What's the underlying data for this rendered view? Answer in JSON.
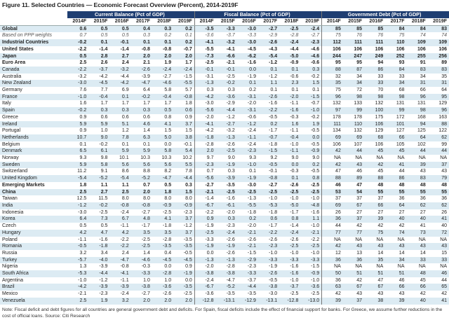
{
  "title": "Figure 11. Selected Countries — Economic Forecast Overview (Percent), 2014-2019F",
  "groups": [
    "Current Balance (Pct of GDP)",
    "Fiscal Balance (Pct of GDP)",
    "Government Debt (Pct of GDP)"
  ],
  "years": [
    "2014F",
    "2015F",
    "2016F",
    "2017F",
    "2018F",
    "2019F"
  ],
  "colors": {
    "header": "#1f3e72",
    "stripe": "#dcebf3"
  },
  "rows": [
    {
      "label": "Global",
      "style": "b",
      "v": [
        "0.6",
        "0.5",
        "0.5",
        "0.4",
        "0.3",
        "0.2",
        "-3.5",
        "-3.3",
        "-3.0",
        "-2.7",
        "-2.5",
        "-2.4",
        "85",
        "85",
        "85",
        "84",
        "84",
        "83"
      ]
    },
    {
      "label": "Based on PPP weights",
      "style": "i",
      "v": [
        "0.7",
        "0.5",
        "0.5",
        "0.3",
        "0.2",
        "0.1",
        "-3.6",
        "-3.7",
        "-3.3",
        "-2.9",
        "-2.8",
        "-2.7",
        "75",
        "76",
        "76",
        "75",
        "74",
        "74"
      ]
    },
    {
      "label": "Industrial Countries",
      "style": "b",
      "v": [
        "-0.2",
        "0.1",
        "-0.1",
        "0.1",
        "0.1",
        "0.2",
        "-4.1",
        "-3.2",
        "-3.0",
        "-2.6",
        "-2.4",
        "-2.3",
        "112",
        "111",
        "111",
        "110",
        "109",
        "109"
      ]
    },
    {
      "label": "United States",
      "style": "b",
      "v": [
        "-2.2",
        "-1.4",
        "-1.4",
        "-0.8",
        "-0.8",
        "-0.7",
        "-5.5",
        "-4.1",
        "-4.5",
        "-4.3",
        "-4.4",
        "-4.6",
        "106",
        "106",
        "106",
        "106",
        "106",
        "106"
      ]
    },
    {
      "label": "Japan",
      "style": "b",
      "v": [
        "0.5",
        "2.8",
        "2.7",
        "2.0",
        "2.0",
        "2.0",
        "-7.3",
        "-6.6",
        "-6.2",
        "-5.4",
        "-5.0",
        "-4.6",
        "244",
        "247",
        "249",
        "252",
        "255",
        "256"
      ]
    },
    {
      "label": "Euro Area",
      "style": "b",
      "v": [
        "2.5",
        "2.6",
        "2.4",
        "2.1",
        "1.9",
        "1.7",
        "-2.5",
        "-2.1",
        "-1.6",
        "-1.2",
        "-0.9",
        "-0.6",
        "95",
        "95",
        "94",
        "93",
        "91",
        "89"
      ]
    },
    {
      "label": "Canada",
      "style": "",
      "v": [
        "-2.2",
        "-3.7",
        "-3.2",
        "-2.6",
        "-2.4",
        "-2.4",
        "-0.1",
        "-0.1",
        "0.0",
        "0.1",
        "0.1",
        "0.3",
        "88",
        "87",
        "86",
        "84",
        "83",
        "83"
      ]
    },
    {
      "label": "Australia",
      "style": "",
      "v": [
        "-3.2",
        "-4.2",
        "-4.4",
        "-3.9",
        "-2.7",
        "-1.5",
        "-3.1",
        "-2.5",
        "-1.9",
        "-1.2",
        "-0.6",
        "-0.2",
        "32",
        "34",
        "33",
        "33",
        "34",
        "35"
      ]
    },
    {
      "label": "New Zealand",
      "style": "",
      "v": [
        "-3.0",
        "-4.5",
        "-4.2",
        "-4.7",
        "-4.6",
        "-5.5",
        "-1.3",
        "-0.2",
        "0.1",
        "1.1",
        "2.3",
        "1.5",
        "35",
        "34",
        "33",
        "34",
        "31",
        "31"
      ]
    },
    {
      "label": "Germany",
      "style": "",
      "v": [
        "7.6",
        "7.7",
        "6.9",
        "6.4",
        "5.8",
        "5.7",
        "0.3",
        "0.3",
        "0.2",
        "0.1",
        "0.1",
        "0.1",
        "75",
        "72",
        "70",
        "68",
        "66",
        "64"
      ]
    },
    {
      "label": "France",
      "style": "",
      "v": [
        "-1.0",
        "-0.4",
        "0.1",
        "-0.2",
        "-0.4",
        "-0.8",
        "-4.2",
        "-3.6",
        "-3.1",
        "-2.6",
        "-2.0",
        "-1.5",
        "96",
        "98",
        "98",
        "98",
        "96",
        "95"
      ]
    },
    {
      "label": "Italy",
      "style": "",
      "v": [
        "1.6",
        "1.7",
        "1.7",
        "1.7",
        "1.7",
        "1.8",
        "-3.0",
        "-2.9",
        "-2.0",
        "-1.6",
        "-1.1",
        "-0.7",
        "132",
        "133",
        "132",
        "131",
        "131",
        "129"
      ]
    },
    {
      "label": "Spain",
      "style": "",
      "v": [
        "-0.2",
        "0.3",
        "0.3",
        "0.3",
        "0.5",
        "0.6",
        "-5.6",
        "-4.4",
        "-3.1",
        "-2.2",
        "-1.6",
        "-1.0",
        "97",
        "99",
        "100",
        "99",
        "98",
        "96"
      ]
    },
    {
      "label": "Greece",
      "style": "",
      "v": [
        "0.9",
        "0.6",
        "0.6",
        "0.6",
        "0.8",
        "0.9",
        "-2.0",
        "-1.2",
        "-0.6",
        "-0.5",
        "-0.3",
        "-0.2",
        "178",
        "178",
        "175",
        "172",
        "168",
        "163"
      ]
    },
    {
      "label": "Ireland",
      "style": "",
      "v": [
        "5.9",
        "5.9",
        "5.1",
        "4.6",
        "4.1",
        "3.7",
        "-4.1",
        "-2.7",
        "-1.2",
        "0.2",
        "1.6",
        "1.9",
        "111",
        "110",
        "106",
        "101",
        "94",
        "88"
      ]
    },
    {
      "label": "Portugal",
      "style": "",
      "v": [
        "0.9",
        "1.0",
        "1.2",
        "1.4",
        "1.5",
        "1.5",
        "-4.2",
        "-3.2",
        "-2.4",
        "-1.7",
        "-1.1",
        "-0.5",
        "134",
        "132",
        "129",
        "127",
        "125",
        "122"
      ]
    },
    {
      "label": "Netherlands",
      "style": "",
      "v": [
        "10.7",
        "9.0",
        "7.8",
        "6.3",
        "5.0",
        "3.8",
        "-1.8",
        "-1.3",
        "-1.1",
        "-0.7",
        "-0.4",
        "0.0",
        "69",
        "69",
        "68",
        "66",
        "64",
        "62"
      ]
    },
    {
      "label": "Belgium",
      "style": "",
      "v": [
        "0.1",
        "-0.2",
        "0.1",
        "0.1",
        "0.0",
        "-0.1",
        "-2.8",
        "-2.6",
        "-2.4",
        "-1.8",
        "-1.0",
        "-0.5",
        "106",
        "107",
        "106",
        "105",
        "102",
        "99"
      ]
    },
    {
      "label": "Denmark",
      "style": "",
      "v": [
        "6.5",
        "6.1",
        "5.9",
        "5.9",
        "5.8",
        "5.4",
        "2.0",
        "-2.5",
        "-2.3",
        "-1.5",
        "-1.1",
        "-0.9",
        "42",
        "44",
        "45",
        "45",
        "44",
        "44"
      ]
    },
    {
      "label": "Norway",
      "style": "",
      "v": [
        "9.3",
        "9.8",
        "10.1",
        "10.3",
        "10.3",
        "10.2",
        "9.7",
        "9.0",
        "9.3",
        "9.2",
        "9.0",
        "9.0",
        "NA",
        "NA",
        "NA",
        "NA",
        "NA",
        "NA"
      ]
    },
    {
      "label": "Sweden",
      "style": "",
      "v": [
        "5.9",
        "5.8",
        "5.6",
        "5.6",
        "5.6",
        "5.5",
        "-2.3",
        "-1.9",
        "-1.0",
        "-0.5",
        "0.0",
        "0.2",
        "42",
        "43",
        "42",
        "41",
        "39",
        "37"
      ]
    },
    {
      "label": "Switzerland",
      "style": "",
      "v": [
        "11.2",
        "9.1",
        "8.6",
        "8.8",
        "8.2",
        "7.8",
        "0.7",
        "0.3",
        "0.1",
        "-0.1",
        "-0.3",
        "-0.5",
        "47",
        "46",
        "45",
        "44",
        "43",
        "43"
      ]
    },
    {
      "label": "United Kingdom",
      "style": "",
      "v": [
        "-5.4",
        "-5.2",
        "-5.4",
        "-5.2",
        "-4.7",
        "-4.4",
        "-5.6",
        "-3.9",
        "-1.9",
        "-0.8",
        "0.1",
        "0.8",
        "88",
        "89",
        "88",
        "86",
        "83",
        "79"
      ]
    },
    {
      "label": "Emerging Markets",
      "style": "b",
      "v": [
        "1.8",
        "1.1",
        "1.1",
        "0.7",
        "0.5",
        "0.3",
        "-2.7",
        "-3.5",
        "-3.0",
        "-2.7",
        "-2.6",
        "-2.5",
        "46",
        "47",
        "48",
        "48",
        "48",
        "48"
      ]
    },
    {
      "label": "China",
      "style": "b",
      "v": [
        "2.5",
        "2.7",
        "2.5",
        "2.0",
        "1.8",
        "1.5",
        "-2.1",
        "-2.5",
        "-2.5",
        "-2.5",
        "-2.5",
        "-2.5",
        "53",
        "54",
        "55",
        "55",
        "55",
        "55"
      ]
    },
    {
      "label": "Taiwan",
      "style": "",
      "v": [
        "12.5",
        "11.5",
        "8.0",
        "8.0",
        "8.0",
        "8.0",
        "-1.4",
        "-1.6",
        "-1.3",
        "-1.0",
        "-1.0",
        "-1.0",
        "37",
        "37",
        "37",
        "36",
        "36",
        "36"
      ]
    },
    {
      "label": "India",
      "style": "",
      "v": [
        "-1.2",
        "-0.2",
        "-0.8",
        "-0.8",
        "-0.9",
        "-0.9",
        "-6.7",
        "-6.1",
        "-5.5",
        "-5.3",
        "-5.0",
        "-4.8",
        "69",
        "67",
        "66",
        "64",
        "62",
        "62"
      ]
    },
    {
      "label": "Indonesia",
      "style": "",
      "v": [
        "-3.0",
        "-2.5",
        "-2.4",
        "-2.7",
        "-2.5",
        "-2.3",
        "-2.2",
        "-2.0",
        "-1.8",
        "-1.8",
        "-1.7",
        "-1.6",
        "26",
        "27",
        "27",
        "27",
        "27",
        "26"
      ]
    },
    {
      "label": "Korea",
      "style": "",
      "v": [
        "6.4",
        "7.3",
        "6.7",
        "4.8",
        "4.1",
        "3.7",
        "0.9",
        "0.3",
        "0.2",
        "0.6",
        "0.8",
        "1.1",
        "36",
        "37",
        "39",
        "40",
        "40",
        "41"
      ]
    },
    {
      "label": "Czech",
      "style": "",
      "v": [
        "0.5",
        "0.5",
        "-1.1",
        "-1.7",
        "-1.8",
        "-1.2",
        "-1.9",
        "-2.3",
        "-2.0",
        "-1.7",
        "-1.4",
        "-1.0",
        "44",
        "42",
        "42",
        "42",
        "41",
        "40"
      ]
    },
    {
      "label": "Hungary",
      "style": "",
      "v": [
        "4.2",
        "4.7",
        "4.2",
        "3.5",
        "3.5",
        "3.7",
        "-2.5",
        "-2.4",
        "-2.1",
        "-2.2",
        "-2.4",
        "-2.1",
        "77",
        "77",
        "75",
        "74",
        "73",
        "72"
      ]
    },
    {
      "label": "Poland",
      "style": "",
      "v": [
        "-1.1",
        "-1.6",
        "-2.2",
        "-2.5",
        "-2.8",
        "-3.5",
        "-3.3",
        "-2.6",
        "-2.6",
        "-2.6",
        "-2.6",
        "-2.2",
        "NA",
        "NA",
        "NA",
        "NA",
        "NA",
        "NA"
      ]
    },
    {
      "label": "Romania",
      "style": "",
      "v": [
        "-0.5",
        "-1.8",
        "-2.2",
        "-2.5",
        "-3.5",
        "-3.5",
        "-1.9",
        "-1.9",
        "-2.1",
        "-2.3",
        "-2.5",
        "-2.5",
        "42",
        "43",
        "43",
        "43",
        "43",
        "43"
      ]
    },
    {
      "label": "Russia",
      "style": "",
      "v": [
        "3.2",
        "3.4",
        "2.4",
        "1.4",
        "0.4",
        "-0.5",
        "0.0",
        "-2.6",
        "-1.5",
        "-1.0",
        "-1.0",
        "-1.0",
        "12",
        "13",
        "14",
        "14",
        "14",
        "15"
      ]
    },
    {
      "label": "Turkey",
      "style": "",
      "v": [
        "-5.7",
        "-4.0",
        "-4.7",
        "-4.6",
        "-4.5",
        "-4.5",
        "-1.3",
        "-1.3",
        "-2.9",
        "-3.3",
        "-3.3",
        "-3.3",
        "36",
        "36",
        "35",
        "34",
        "33",
        "33"
      ]
    },
    {
      "label": "Nigeria",
      "style": "",
      "v": [
        "1.3",
        "-3.9",
        "-0.8",
        "-0.3",
        "0.0",
        "0.9",
        "-2.0",
        "-2.8",
        "-2.3",
        "-1.9",
        "-1.6",
        "-1.5",
        "NA",
        "NA",
        "NA",
        "NA",
        "NA",
        "NA"
      ]
    },
    {
      "label": "South Africa",
      "style": "",
      "v": [
        "-5.3",
        "-4.4",
        "-4.1",
        "-3.3",
        "-2.8",
        "-1.9",
        "-3.8",
        "-3.8",
        "-3.3",
        "-2.6",
        "-1.6",
        "-0.9",
        "50",
        "51",
        "51",
        "51",
        "48",
        "46"
      ]
    },
    {
      "label": "Argentina",
      "style": "",
      "v": [
        "-1.0",
        "-1.2",
        "-1.1",
        "1.0",
        "1.0",
        "0.0",
        "-2.4",
        "-4.7",
        "-3.7",
        "-0.5",
        "-1.0",
        "-1.0",
        "36",
        "42",
        "47",
        "46",
        "45",
        "44"
      ]
    },
    {
      "label": "Brazil",
      "style": "",
      "v": [
        "-4.2",
        "-3.9",
        "-3.9",
        "-3.8",
        "-3.6",
        "-3.5",
        "-6.7",
        "-5.2",
        "-4.4",
        "-3.8",
        "-3.7",
        "-3.6",
        "63",
        "67",
        "67",
        "66",
        "66",
        "65"
      ]
    },
    {
      "label": "Mexico",
      "style": "",
      "v": [
        "-2.1",
        "-2.3",
        "-2.4",
        "-2.7",
        "-2.6",
        "-2.5",
        "-3.6",
        "-3.5",
        "-3.5",
        "-3.0",
        "-2.5",
        "-2.5",
        "42",
        "43",
        "43",
        "43",
        "42",
        "42"
      ]
    },
    {
      "label": "Venezuela",
      "style": "",
      "v": [
        "2.5",
        "1.9",
        "3.2",
        "2.0",
        "2.0",
        "2.0",
        "-12.8",
        "-13.1",
        "-12.9",
        "-13.1",
        "-12.8",
        "-13.0",
        "39",
        "37",
        "38",
        "39",
        "40",
        "41"
      ]
    }
  ],
  "note": "Note: Fiscal deficit and debt figures for all countries are general government debt and deficits. For Spain, fiscal deficits include the effect of financial support for banks. For Greece, we assume further reductions in the cost of official loans. Source: Citi Research"
}
